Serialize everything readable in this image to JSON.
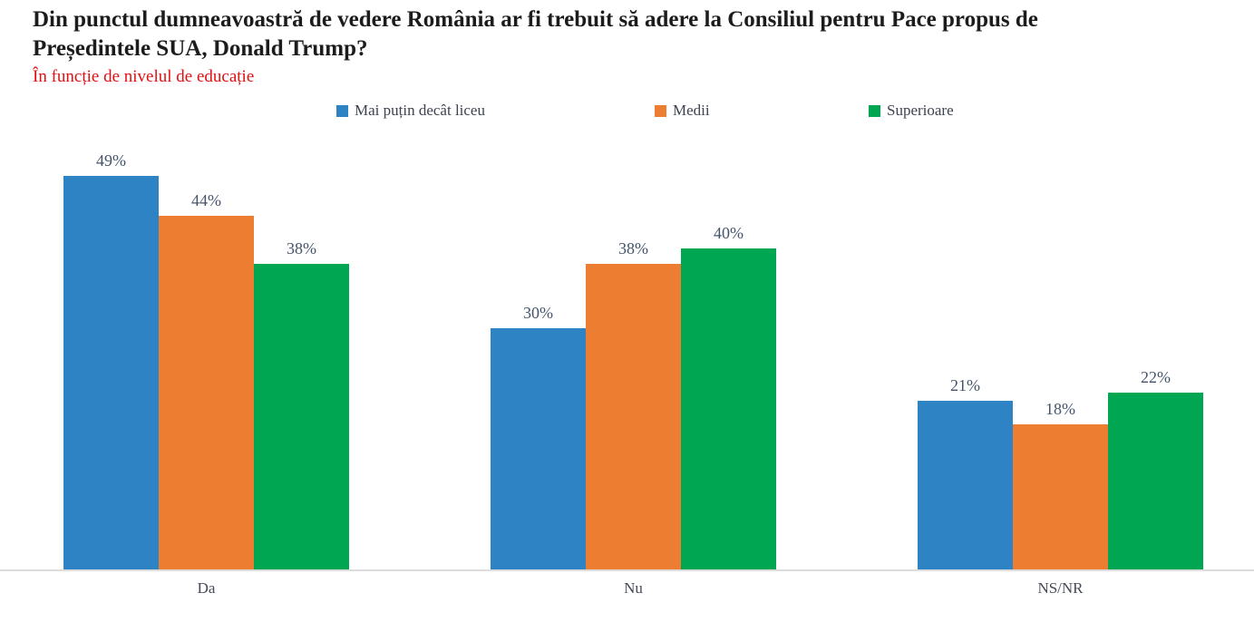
{
  "title": "Din punctul dumneavoastră de vedere România ar fi trebuit să adere la Consiliul pentru Pace propus de Președintele SUA, Donald Trump?",
  "subtitle": "În funcție de nivelul de educație",
  "colors": {
    "title_text": "#1c1c1c",
    "subtitle_text": "#e01010",
    "label_text": "#44546a",
    "baseline": "#dcdcdc",
    "series_blue": "#2e83c5",
    "series_orange": "#ed7d31",
    "series_green": "#00a651"
  },
  "chart_data": {
    "type": "bar",
    "title": "Din punctul dumneavoastră de vedere România ar fi trebuit să adere la Consiliul pentru Pace propus de Președintele SUA, Donald Trump?",
    "subtitle": "În funcție de nivelul de educație",
    "categories": [
      "Da",
      "Nu",
      "NS/NR"
    ],
    "series": [
      {
        "name": "Mai puțin decât liceu",
        "color": "#2e83c5",
        "values": [
          49,
          30,
          21
        ]
      },
      {
        "name": "Medii",
        "color": "#ed7d31",
        "values": [
          44,
          38,
          18
        ]
      },
      {
        "name": "Superioare",
        "color": "#00a651",
        "values": [
          38,
          40,
          22
        ]
      }
    ],
    "value_labels": [
      [
        "49%",
        "44%",
        "38%"
      ],
      [
        "30%",
        "38%",
        "40%"
      ],
      [
        "21%",
        "18%",
        "22%"
      ]
    ],
    "value_suffix": "%",
    "xlabel": "",
    "ylabel": "",
    "ylim": [
      0,
      54.5
    ],
    "grid": false,
    "y_axis_visible": false,
    "legend_position": "top"
  }
}
